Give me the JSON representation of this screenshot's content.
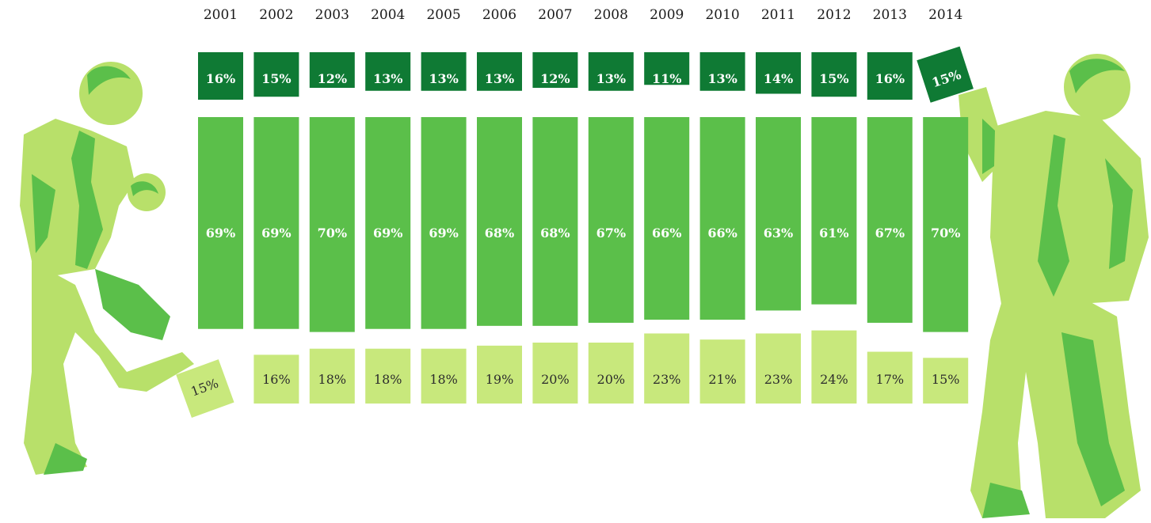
{
  "colors": {
    "top": "#0f7a34",
    "middle": "#5bbf4a",
    "bottom": "#c8e87c",
    "figure_light": "#b8e06a",
    "figure_dark": "#5bbf4a"
  },
  "figures": {
    "left": "businessman-kicking-icon",
    "right": "businessman-lifting-icon"
  },
  "chart_data": {
    "type": "bar",
    "categories": [
      "2001",
      "2002",
      "2003",
      "2004",
      "2005",
      "2006",
      "2007",
      "2008",
      "2009",
      "2010",
      "2011",
      "2012",
      "2013",
      "2014"
    ],
    "series": [
      {
        "values": [
          16,
          15,
          12,
          13,
          13,
          13,
          12,
          13,
          11,
          13,
          14,
          15,
          16,
          15
        ]
      },
      {
        "values": [
          69,
          69,
          70,
          69,
          69,
          68,
          68,
          67,
          66,
          66,
          63,
          61,
          67,
          70
        ]
      },
      {
        "values": [
          15,
          16,
          18,
          18,
          18,
          19,
          20,
          20,
          23,
          21,
          23,
          24,
          17,
          15
        ]
      }
    ],
    "labels": {
      "top": [
        "16%",
        "15%",
        "12%",
        "13%",
        "13%",
        "13%",
        "12%",
        "13%",
        "11%",
        "13%",
        "14%",
        "15%",
        "16%",
        "15%"
      ],
      "middle": [
        "69%",
        "69%",
        "70%",
        "69%",
        "69%",
        "68%",
        "68%",
        "67%",
        "66%",
        "66%",
        "63%",
        "61%",
        "67%",
        "70%"
      ],
      "bottom": [
        "15%",
        "16%",
        "18%",
        "18%",
        "18%",
        "19%",
        "20%",
        "20%",
        "23%",
        "21%",
        "23%",
        "24%",
        "17%",
        "15%"
      ]
    },
    "title": "",
    "xlabel": "",
    "ylabel": "",
    "legend": "none",
    "grid": false
  }
}
